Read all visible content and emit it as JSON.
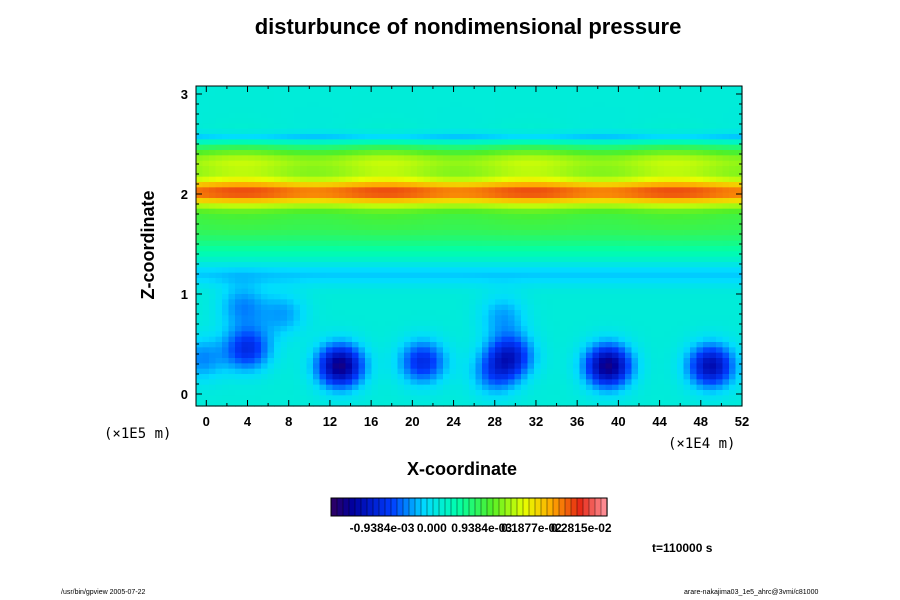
{
  "chart_data": {
    "type": "heatmap",
    "title": "disturbunce of nondimensional pressure",
    "xlabel": "X-coordinate",
    "ylabel": "Z-coordinate",
    "x_unit": "(×1E4 m)",
    "y_unit": "(×1E5 m)",
    "xlim": [
      -1,
      52
    ],
    "ylim": [
      -0.12,
      3.08
    ],
    "x_ticks": [
      "0",
      "4",
      "8",
      "12",
      "16",
      "20",
      "24",
      "28",
      "32",
      "36",
      "40",
      "44",
      "48",
      "52"
    ],
    "y_ticks": [
      "0",
      "1",
      "2",
      "3"
    ],
    "colorbar_labels": [
      "-0.9384e-03",
      "0.000",
      "0.9384e-03",
      "0.1877e-02",
      "0.2815e-02"
    ],
    "colorbar_range": [
      -0.0019,
      0.0033
    ],
    "time_label": "t=110000 s",
    "background_level": 0.00015,
    "bands": [
      {
        "z": 2.02,
        "width": 0.14,
        "amp": 0.002
      },
      {
        "z": 1.72,
        "width": 0.32,
        "amp": 0.0008
      },
      {
        "z": 2.32,
        "width": 0.18,
        "amp": 0.0013
      },
      {
        "z": 2.57,
        "width": 0.05,
        "amp": -0.0005
      },
      {
        "z": 1.2,
        "width": 0.12,
        "amp": -0.0004
      }
    ],
    "lows": [
      {
        "x": 13,
        "z": 0.28,
        "amp": -0.0018
      },
      {
        "x": 39,
        "z": 0.28,
        "amp": -0.0018
      },
      {
        "x": 49,
        "z": 0.28,
        "amp": -0.0015
      },
      {
        "x": 4,
        "z": 0.45,
        "amp": -0.0011
      },
      {
        "x": 21,
        "z": 0.32,
        "amp": -0.0011
      },
      {
        "x": 29.5,
        "z": 0.38,
        "amp": -0.0012
      },
      {
        "x": 3.5,
        "z": 0.88,
        "amp": -0.0006
      },
      {
        "x": 28,
        "z": 0.2,
        "amp": -0.0007
      },
      {
        "x": 7.5,
        "z": 0.8,
        "amp": -0.0005
      },
      {
        "x": 28.8,
        "z": 0.78,
        "amp": -0.0005
      },
      {
        "x": -0.5,
        "z": 0.35,
        "amp": -0.0006
      }
    ]
  },
  "footer": {
    "left": "/usr/bin/gpview 2005-07-22",
    "right": "arare-nakajima03_1e5_ahrc@3vmi/c81000"
  }
}
